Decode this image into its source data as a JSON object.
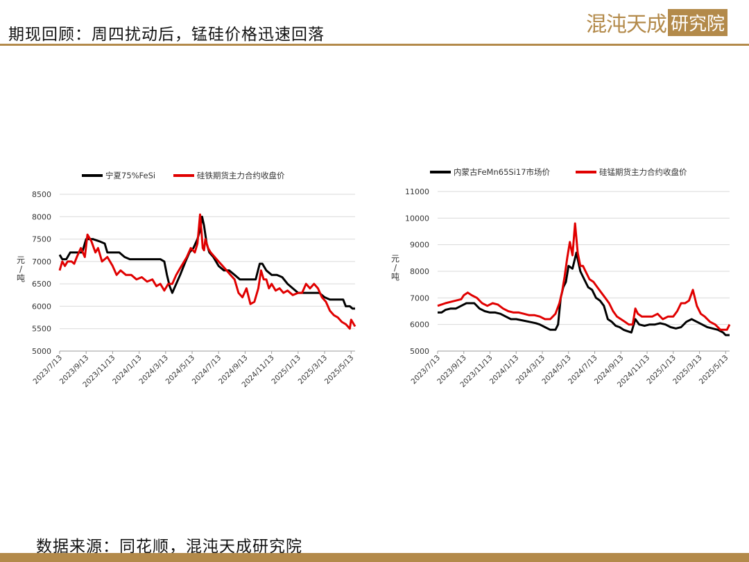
{
  "header": {
    "title": "期现回顾：周四扰动后，锰硅价格迅速回落",
    "logo_text": "混沌天成",
    "logo_box_text": "研究院",
    "accent_color": "#b38a4a"
  },
  "footer": {
    "source": "数据来源：同花顺，混沌天成研究院"
  },
  "chart_data": [
    {
      "type": "line",
      "ylabel": "元/吨",
      "ylim": [
        5000,
        8500
      ],
      "yticks": [
        5000,
        5500,
        6000,
        6500,
        7000,
        7500,
        8000,
        8500
      ],
      "xtick_labels": [
        "2023/7/13",
        "2023/9/13",
        "2023/11/13",
        "2024/1/13",
        "2024/3/13",
        "2024/5/13",
        "2024/7/13",
        "2024/9/13",
        "2024/11/13",
        "2025/1/13",
        "2025/3/13",
        "2025/5/13"
      ],
      "xtick_positions": [
        0,
        2,
        4,
        6,
        8,
        10,
        12,
        14,
        16,
        18,
        20,
        22
      ],
      "xlim": [
        0,
        22.3
      ],
      "grid": true,
      "legend_position": "top",
      "series": [
        {
          "name": "宁夏75%FeSi",
          "color": "#000000",
          "x": [
            0,
            0.2,
            0.5,
            0.8,
            1.2,
            1.4,
            1.7,
            2.0,
            2.5,
            3.0,
            3.4,
            3.6,
            4.0,
            4.5,
            4.9,
            5.3,
            5.6,
            6.0,
            6.4,
            6.8,
            7.2,
            7.6,
            7.9,
            8.1,
            8.3,
            8.5,
            8.8,
            9.1,
            9.5,
            9.8,
            10.1,
            10.4,
            10.6,
            10.75,
            10.9,
            11.1,
            11.3,
            11.6,
            12.0,
            12.4,
            12.8,
            13.2,
            13.6,
            14.0,
            14.4,
            14.8,
            15.1,
            15.3,
            15.6,
            16.0,
            16.4,
            16.8,
            17.2,
            17.6,
            18.0,
            18.4,
            18.8,
            19.2,
            19.6,
            20.0,
            20.4,
            20.8,
            21.2,
            21.4,
            21.6,
            21.9,
            22.1,
            22.3
          ],
          "values": [
            7150,
            7050,
            7050,
            7200,
            7200,
            7200,
            7200,
            7500,
            7500,
            7450,
            7400,
            7200,
            7200,
            7200,
            7100,
            7050,
            7050,
            7050,
            7050,
            7050,
            7050,
            7050,
            7000,
            6700,
            6450,
            6300,
            6500,
            6700,
            7000,
            7200,
            7300,
            7500,
            7700,
            8000,
            7800,
            7400,
            7200,
            7100,
            6900,
            6800,
            6800,
            6700,
            6600,
            6600,
            6600,
            6600,
            6950,
            6950,
            6800,
            6700,
            6700,
            6650,
            6500,
            6400,
            6300,
            6300,
            6300,
            6300,
            6300,
            6200,
            6150,
            6150,
            6150,
            6150,
            6000,
            6000,
            5950,
            5950
          ]
        },
        {
          "name": "硅铁期货主力合约收盘价",
          "color": "#e00000",
          "x": [
            0,
            0.2,
            0.4,
            0.6,
            0.9,
            1.1,
            1.3,
            1.6,
            1.9,
            2.1,
            2.4,
            2.7,
            2.9,
            3.2,
            3.6,
            4.0,
            4.3,
            4.6,
            5.0,
            5.4,
            5.8,
            6.2,
            6.6,
            7.0,
            7.3,
            7.6,
            7.9,
            8.2,
            8.5,
            8.8,
            9.2,
            9.6,
            9.9,
            10.2,
            10.4,
            10.6,
            10.7,
            10.8,
            10.9,
            11.0,
            11.2,
            11.4,
            11.7,
            12.0,
            12.3,
            12.6,
            12.9,
            13.2,
            13.5,
            13.8,
            14.1,
            14.4,
            14.7,
            15.0,
            15.2,
            15.4,
            15.6,
            15.8,
            16.0,
            16.3,
            16.6,
            16.9,
            17.2,
            17.6,
            18.0,
            18.3,
            18.6,
            18.9,
            19.2,
            19.5,
            19.8,
            20.1,
            20.4,
            20.7,
            21.0,
            21.3,
            21.6,
            21.9,
            22.0,
            22.2,
            22.3
          ],
          "values": [
            6800,
            7000,
            6900,
            7000,
            7000,
            6950,
            7100,
            7300,
            7100,
            7600,
            7450,
            7200,
            7300,
            7000,
            7100,
            6900,
            6700,
            6800,
            6700,
            6700,
            6600,
            6650,
            6550,
            6600,
            6450,
            6500,
            6350,
            6500,
            6500,
            6700,
            6900,
            7100,
            7300,
            7200,
            7400,
            8050,
            7700,
            7300,
            7250,
            7500,
            7300,
            7200,
            7100,
            7000,
            6900,
            6800,
            6700,
            6600,
            6300,
            6200,
            6400,
            6050,
            6100,
            6400,
            6800,
            6600,
            6600,
            6400,
            6500,
            6350,
            6400,
            6300,
            6350,
            6250,
            6300,
            6300,
            6500,
            6400,
            6500,
            6400,
            6200,
            6100,
            5900,
            5800,
            5750,
            5650,
            5600,
            5500,
            5700,
            5600,
            5550
          ]
        }
      ]
    },
    {
      "type": "line",
      "ylabel": "元/吨",
      "ylim": [
        5000,
        11000
      ],
      "yticks": [
        5000,
        6000,
        7000,
        8000,
        9000,
        10000,
        11000
      ],
      "xtick_labels": [
        "2023/7/13",
        "2023/9/13",
        "2023/11/13",
        "2024/1/13",
        "2024/3/13",
        "2024/5/13",
        "2024/7/13",
        "2024/9/13",
        "2024/11/13",
        "2025/1/13",
        "2025/3/13",
        "2025/5/13"
      ],
      "xtick_positions": [
        0,
        2,
        4,
        6,
        8,
        10,
        12,
        14,
        16,
        18,
        20,
        22
      ],
      "xlim": [
        0,
        22.3
      ],
      "grid": true,
      "legend_position": "top",
      "series": [
        {
          "name": "内蒙古FeMn65Si17市场价",
          "color": "#000000",
          "x": [
            0,
            0.3,
            0.6,
            1.0,
            1.4,
            1.8,
            2.2,
            2.5,
            2.8,
            3.2,
            3.6,
            4.0,
            4.4,
            4.8,
            5.2,
            5.6,
            6.0,
            6.5,
            7.0,
            7.5,
            7.8,
            8.2,
            8.6,
            9.0,
            9.2,
            9.4,
            9.6,
            9.8,
            10.0,
            10.3,
            10.6,
            10.9,
            11.2,
            11.5,
            11.8,
            12.1,
            12.4,
            12.7,
            13.0,
            13.3,
            13.6,
            13.9,
            14.2,
            14.5,
            14.8,
            15.1,
            15.4,
            15.8,
            16.2,
            16.6,
            17.0,
            17.4,
            17.8,
            18.2,
            18.6,
            19.0,
            19.4,
            19.8,
            20.2,
            20.6,
            21.0,
            21.4,
            21.8,
            22.0,
            22.3
          ],
          "values": [
            6450,
            6450,
            6550,
            6600,
            6600,
            6700,
            6800,
            6800,
            6800,
            6600,
            6500,
            6450,
            6450,
            6400,
            6300,
            6200,
            6200,
            6150,
            6100,
            6050,
            6000,
            5900,
            5800,
            5800,
            6000,
            7000,
            7400,
            7600,
            8200,
            8100,
            8700,
            8000,
            7700,
            7400,
            7300,
            7000,
            6900,
            6700,
            6200,
            6100,
            5950,
            5900,
            5800,
            5750,
            5700,
            6200,
            6000,
            5950,
            6000,
            6000,
            6050,
            6000,
            5900,
            5850,
            5900,
            6100,
            6200,
            6100,
            6000,
            5900,
            5850,
            5800,
            5700,
            5600,
            5600
          ]
        },
        {
          "name": "硅锰期货主力合约收盘价",
          "color": "#e00000",
          "x": [
            0,
            0.3,
            0.6,
            1.0,
            1.4,
            1.8,
            2.0,
            2.3,
            2.6,
            3.0,
            3.4,
            3.8,
            4.2,
            4.6,
            5.0,
            5.4,
            5.8,
            6.2,
            6.6,
            7.0,
            7.4,
            7.8,
            8.2,
            8.6,
            9.0,
            9.3,
            9.5,
            9.7,
            9.9,
            10.1,
            10.3,
            10.5,
            10.7,
            10.9,
            11.1,
            11.3,
            11.6,
            11.9,
            12.2,
            12.5,
            12.8,
            13.1,
            13.4,
            13.7,
            14.0,
            14.3,
            14.6,
            14.9,
            15.1,
            15.3,
            15.6,
            16.0,
            16.4,
            16.8,
            17.2,
            17.6,
            18.0,
            18.3,
            18.6,
            18.9,
            19.2,
            19.5,
            19.8,
            20.1,
            20.4,
            20.8,
            21.2,
            21.6,
            21.9,
            22.1,
            22.3
          ],
          "values": [
            6700,
            6750,
            6800,
            6850,
            6900,
            6950,
            7100,
            7200,
            7100,
            7000,
            6800,
            6700,
            6800,
            6750,
            6600,
            6500,
            6450,
            6450,
            6400,
            6350,
            6350,
            6300,
            6200,
            6200,
            6400,
            6800,
            7200,
            7800,
            8500,
            9100,
            8600,
            9800,
            8700,
            8200,
            8200,
            8000,
            7700,
            7600,
            7400,
            7200,
            7000,
            6800,
            6500,
            6300,
            6200,
            6100,
            6000,
            6000,
            6600,
            6400,
            6300,
            6300,
            6300,
            6400,
            6200,
            6300,
            6300,
            6500,
            6800,
            6800,
            6900,
            7300,
            6700,
            6400,
            6300,
            6100,
            6000,
            5800,
            5800,
            5800,
            6000
          ]
        }
      ]
    }
  ]
}
